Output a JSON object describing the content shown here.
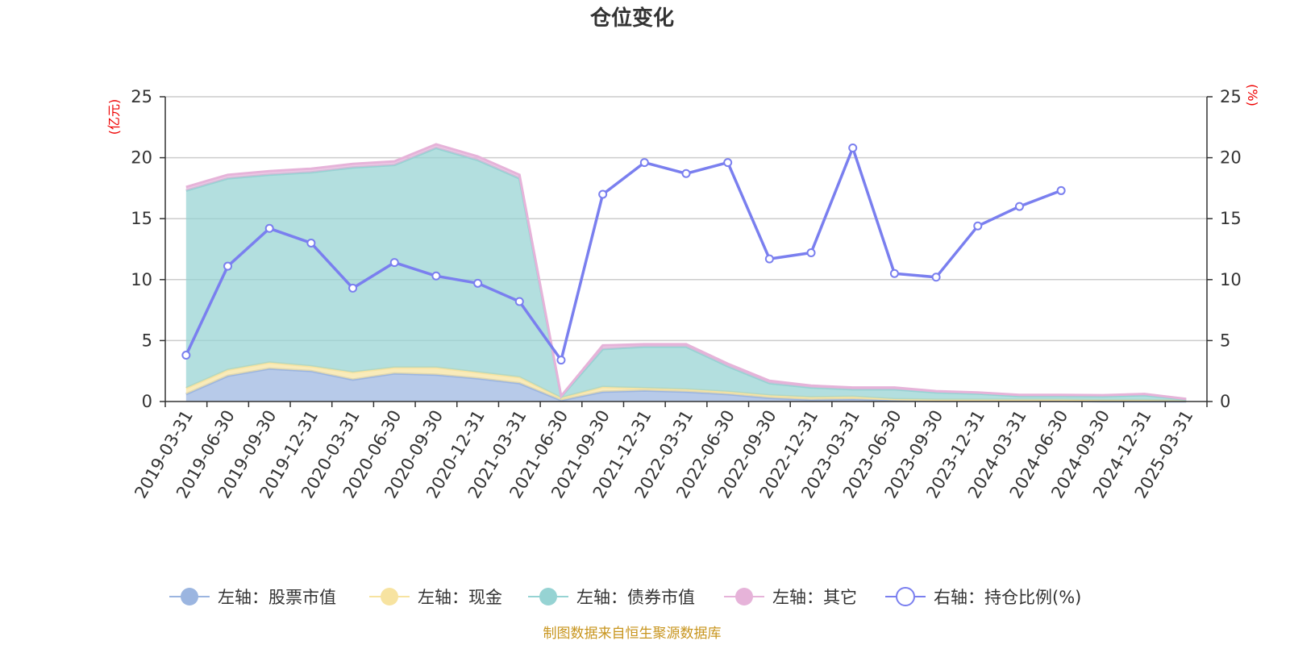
{
  "chart_data": {
    "type": "area",
    "title": "仓位变化",
    "left_unit": "(亿元)",
    "right_unit": "(%)",
    "source": "制图数据来自恒生聚源数据库",
    "x": [
      "2019-03-31",
      "2019-06-30",
      "2019-09-30",
      "2019-12-31",
      "2020-03-31",
      "2020-06-30",
      "2020-09-30",
      "2020-12-31",
      "2021-03-31",
      "2021-06-30",
      "2021-09-30",
      "2021-12-31",
      "2022-03-31",
      "2022-06-30",
      "2022-09-30",
      "2022-12-31",
      "2023-03-31",
      "2023-06-30",
      "2023-09-30",
      "2023-12-31",
      "2024-03-31",
      "2024-06-30",
      "2024-09-30",
      "2024-12-31",
      "2025-03-31"
    ],
    "left_ylim": [
      0,
      25
    ],
    "right_ylim": [
      0,
      25
    ],
    "yticks": [
      0,
      5,
      10,
      15,
      20,
      25
    ],
    "grid": true,
    "legend_position": "bottom",
    "stacked_series": [
      {
        "name": "左轴：股票市值",
        "axis": "left",
        "color": "#9bb5e0",
        "values": [
          0.6,
          2.1,
          2.7,
          2.5,
          1.8,
          2.3,
          2.2,
          1.9,
          1.5,
          0.1,
          0.8,
          0.9,
          0.8,
          0.6,
          0.3,
          0.15,
          0.2,
          0.1,
          0.05,
          0.05,
          0.05,
          0.05,
          0.02,
          0.02,
          0.02
        ]
      },
      {
        "name": "左轴：现金",
        "axis": "left",
        "color": "#f7e3a0",
        "values": [
          0.5,
          0.5,
          0.5,
          0.4,
          0.6,
          0.5,
          0.6,
          0.5,
          0.5,
          0.2,
          0.4,
          0.2,
          0.2,
          0.2,
          0.2,
          0.2,
          0.2,
          0.1,
          0.1,
          0.1,
          0.1,
          0.1,
          0.1,
          0.1,
          0.05
        ]
      },
      {
        "name": "左轴：债券市值",
        "axis": "left",
        "color": "#96d3d3",
        "values": [
          16.2,
          15.7,
          15.4,
          15.9,
          16.8,
          16.6,
          18.0,
          17.4,
          16.3,
          0.1,
          3.1,
          3.4,
          3.5,
          2.1,
          1.0,
          0.8,
          0.6,
          0.8,
          0.6,
          0.5,
          0.3,
          0.3,
          0.3,
          0.4,
          0.1
        ]
      },
      {
        "name": "左轴：其它",
        "axis": "left",
        "color": "#e6b3d9",
        "values": [
          0.3,
          0.3,
          0.3,
          0.3,
          0.3,
          0.3,
          0.3,
          0.3,
          0.3,
          0.05,
          0.3,
          0.2,
          0.2,
          0.2,
          0.2,
          0.15,
          0.15,
          0.15,
          0.1,
          0.1,
          0.1,
          0.1,
          0.1,
          0.1,
          0.05
        ]
      }
    ],
    "line_series": {
      "name": "右轴：持仓比例(%)",
      "axis": "right",
      "color": "#7a7fef",
      "values": [
        3.8,
        11.1,
        14.2,
        13.0,
        9.3,
        11.4,
        10.3,
        9.7,
        8.2,
        3.4,
        17.0,
        19.6,
        18.7,
        19.6,
        11.7,
        12.2,
        20.8,
        10.5,
        10.2,
        14.4,
        16.0,
        17.3,
        null,
        null,
        null
      ]
    }
  }
}
